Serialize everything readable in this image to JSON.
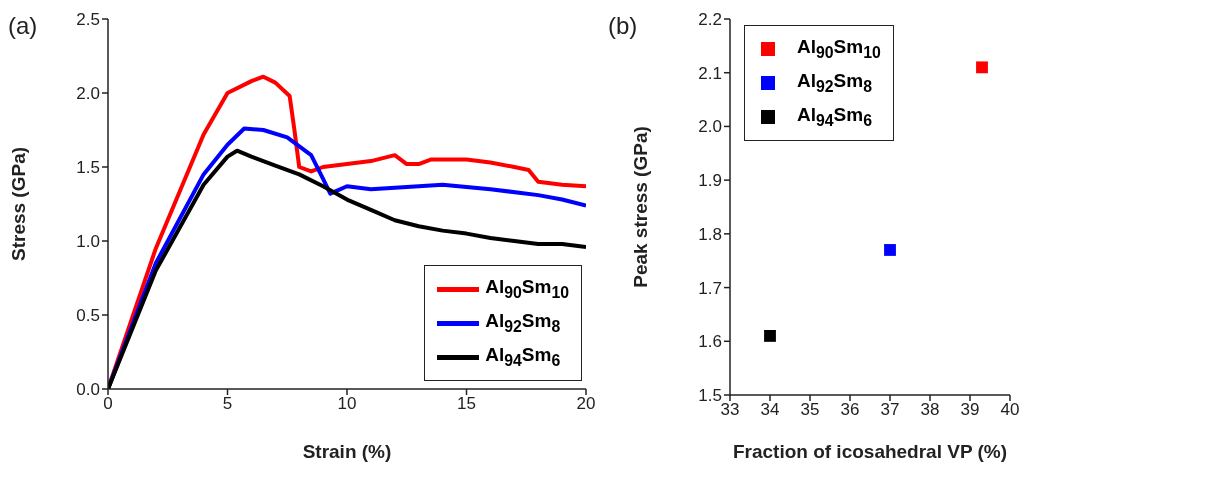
{
  "chart_data": [
    {
      "type": "line",
      "title": "(a)",
      "xlabel": "Strain (%)",
      "ylabel": "Stress (GPa)",
      "xlim": [
        0,
        20
      ],
      "xticks": [
        0,
        5,
        10,
        15,
        20
      ],
      "ylim": [
        0,
        2.5
      ],
      "yticks": [
        {
          "value": 0,
          "label": "0.0"
        },
        {
          "value": 0.5,
          "label": "0.5"
        },
        {
          "value": 1,
          "label": "1.0"
        },
        {
          "value": 1.5,
          "label": "1.5"
        },
        {
          "value": 2,
          "label": "2.0"
        },
        {
          "value": 2.5,
          "label": "2.5"
        }
      ],
      "legend": "bottom right",
      "marker": "none",
      "line_style": "solid",
      "grid": false,
      "series": [
        {
          "name": "Al$_{90}$Sm$_{10}$",
          "color": "#ff0000",
          "x": [
            0,
            2,
            4,
            5,
            6,
            6.5,
            7,
            7.6,
            7.8,
            8,
            8.5,
            9,
            10,
            11,
            12,
            12.5,
            13,
            13.5,
            15,
            16,
            17,
            17.6,
            18,
            19,
            20
          ],
          "values": [
            0,
            0.95,
            1.72,
            2.0,
            2.08,
            2.11,
            2.07,
            1.98,
            1.75,
            1.5,
            1.47,
            1.5,
            1.52,
            1.54,
            1.58,
            1.52,
            1.52,
            1.55,
            1.55,
            1.53,
            1.5,
            1.48,
            1.4,
            1.38,
            1.37
          ]
        },
        {
          "name": "Al$_{92}$Sm$_{8}$",
          "color": "#0000ff",
          "x": [
            0,
            2,
            4,
            5,
            5.7,
            6.5,
            7.5,
            8.5,
            9,
            9.3,
            10,
            11,
            12,
            14,
            16,
            18,
            19,
            20
          ],
          "values": [
            0,
            0.85,
            1.45,
            1.65,
            1.76,
            1.75,
            1.7,
            1.58,
            1.42,
            1.32,
            1.37,
            1.35,
            1.36,
            1.38,
            1.35,
            1.31,
            1.28,
            1.24
          ]
        },
        {
          "name": "Al$_{94}$Sm$_{6}$",
          "color": "#000000",
          "x": [
            0,
            2,
            4,
            5,
            5.4,
            6,
            7,
            8,
            9,
            10,
            11,
            12,
            13,
            14,
            15,
            16,
            17,
            18,
            19,
            20
          ],
          "values": [
            0,
            0.8,
            1.38,
            1.57,
            1.61,
            1.57,
            1.51,
            1.45,
            1.37,
            1.28,
            1.21,
            1.14,
            1.1,
            1.07,
            1.05,
            1.02,
            1.0,
            0.98,
            0.98,
            0.96
          ]
        }
      ]
    },
    {
      "type": "scatter",
      "title": "(b)",
      "xlabel": "Fraction of icosahedral VP (%)",
      "ylabel": "Peak stress (GPa)",
      "xlim": [
        33,
        40
      ],
      "xticks": [
        33,
        34,
        35,
        36,
        37,
        38,
        39,
        40
      ],
      "ylim": [
        1.5,
        2.2
      ],
      "yticks": [
        {
          "value": 1.5,
          "label": "1.5"
        },
        {
          "value": 1.6,
          "label": "1.6"
        },
        {
          "value": 1.7,
          "label": "1.7"
        },
        {
          "value": 1.8,
          "label": "1.8"
        },
        {
          "value": 1.9,
          "label": "1.9"
        },
        {
          "value": 2.0,
          "label": "2.0"
        },
        {
          "value": 2.1,
          "label": "2.1"
        },
        {
          "value": 2.2,
          "label": "2.2"
        }
      ],
      "legend": "top left",
      "marker": "square",
      "grid": false,
      "series": [
        {
          "name": "Al$_{90}$Sm$_{10}$",
          "color": "#ff0000",
          "x": [
            39.3
          ],
          "values": [
            2.11
          ]
        },
        {
          "name": "Al$_{92}$Sm$_{8}$",
          "color": "#0000ff",
          "x": [
            37
          ],
          "values": [
            1.77
          ]
        },
        {
          "name": "Al$_{94}$Sm$_{6}$",
          "color": "#000000",
          "x": [
            34
          ],
          "values": [
            1.61
          ]
        }
      ]
    }
  ]
}
